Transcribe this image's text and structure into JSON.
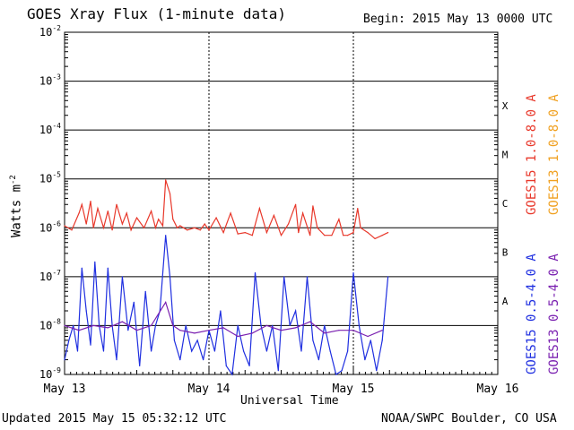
{
  "header": {
    "title": "GOES Xray Flux (1-minute data)",
    "begin": "Begin:  2015 May 13 0000 UTC"
  },
  "footer": {
    "updated": "Updated 2015 May 15 05:32:12 UTC",
    "source": "NOAA/SWPC Boulder, CO USA"
  },
  "legend": [
    {
      "label": "GOES15 1.0-8.0 A",
      "color": "#e8382b"
    },
    {
      "label": "GOES13 1.0-8.0 A",
      "color": "#f0a020"
    },
    {
      "label": "GOES15 0.5-4.0 A",
      "color": "#1f2fe0"
    },
    {
      "label": "GOES13 0.5-4.0 A",
      "color": "#7a20b0"
    }
  ],
  "flare_classes": [
    "X",
    "M",
    "C",
    "B",
    "A"
  ],
  "chart_data": {
    "type": "line",
    "xlabel": "Universal Time",
    "ylabel": "Watts m",
    "ylabel_sup": "-2",
    "y_scale": "log",
    "ylim": [
      1e-09,
      0.01
    ],
    "y_ticks": [
      {
        "base": "10",
        "exp": "-2"
      },
      {
        "base": "10",
        "exp": "-3"
      },
      {
        "base": "10",
        "exp": "-4"
      },
      {
        "base": "10",
        "exp": "-5"
      },
      {
        "base": "10",
        "exp": "-6"
      },
      {
        "base": "10",
        "exp": "-7"
      },
      {
        "base": "10",
        "exp": "-8"
      },
      {
        "base": "10",
        "exp": "-9"
      }
    ],
    "x_ticks": [
      "May 13",
      "May 14",
      "May 15",
      "May 16"
    ],
    "x_day_range": [
      0,
      3
    ],
    "grid": true,
    "series": [
      {
        "name": "GOES15 1.0-8.0 A",
        "color": "#e8382b",
        "x": [
          0,
          0.05,
          0.1,
          0.12,
          0.15,
          0.18,
          0.2,
          0.23,
          0.27,
          0.3,
          0.33,
          0.36,
          0.4,
          0.43,
          0.46,
          0.5,
          0.55,
          0.6,
          0.63,
          0.65,
          0.68,
          0.7,
          0.73,
          0.75,
          0.78,
          0.8,
          0.85,
          0.9,
          0.94,
          0.97,
          1.0,
          1.05,
          1.1,
          1.15,
          1.2,
          1.25,
          1.3,
          1.35,
          1.4,
          1.45,
          1.5,
          1.55,
          1.6,
          1.62,
          1.65,
          1.7,
          1.72,
          1.75,
          1.8,
          1.85,
          1.9,
          1.93,
          1.96,
          2.0,
          2.03,
          2.05,
          2.1,
          2.15,
          2.2,
          2.24
        ],
        "y": [
          1.1e-06,
          9e-07,
          2e-06,
          3e-06,
          1.2e-06,
          3.5e-06,
          1e-06,
          2.5e-06,
          1e-06,
          2.2e-06,
          9e-07,
          3e-06,
          1.2e-06,
          2e-06,
          9e-07,
          1.6e-06,
          1e-06,
          2.2e-06,
          1e-06,
          1.5e-06,
          1.1e-06,
          9.5e-06,
          5e-06,
          1.5e-06,
          1e-06,
          1.1e-06,
          9e-07,
          1e-06,
          9e-07,
          1.2e-06,
          9e-07,
          1.6e-06,
          8e-07,
          2e-06,
          7.5e-07,
          8e-07,
          7e-07,
          2.5e-06,
          8e-07,
          1.8e-06,
          7e-07,
          1.2e-06,
          3e-06,
          8e-07,
          2e-06,
          7e-07,
          2.8e-06,
          1e-06,
          7e-07,
          7e-07,
          1.5e-06,
          7e-07,
          7e-07,
          8e-07,
          2.5e-06,
          1e-06,
          8e-07,
          6e-07,
          7e-07,
          8e-07
        ]
      },
      {
        "name": "GOES13 1.0-8.0 A",
        "color": "#f0a020",
        "x": [],
        "y": []
      },
      {
        "name": "GOES15 0.5-4.0 A",
        "color": "#1f2fe0",
        "x": [
          0,
          0.03,
          0.06,
          0.09,
          0.12,
          0.15,
          0.18,
          0.21,
          0.24,
          0.27,
          0.3,
          0.33,
          0.36,
          0.4,
          0.44,
          0.48,
          0.52,
          0.56,
          0.6,
          0.63,
          0.66,
          0.7,
          0.73,
          0.76,
          0.8,
          0.84,
          0.88,
          0.92,
          0.96,
          1.0,
          1.04,
          1.08,
          1.12,
          1.16,
          1.2,
          1.24,
          1.28,
          1.32,
          1.36,
          1.4,
          1.44,
          1.48,
          1.52,
          1.56,
          1.6,
          1.64,
          1.68,
          1.72,
          1.76,
          1.8,
          1.84,
          1.88,
          1.92,
          1.96,
          2.0,
          2.04,
          2.08,
          2.12,
          2.16,
          2.2,
          2.24
        ],
        "y": [
          2e-09,
          5e-09,
          1e-08,
          3e-09,
          1.5e-07,
          2e-08,
          4e-09,
          2e-07,
          1e-08,
          3e-09,
          1.5e-07,
          1e-08,
          2e-09,
          1e-07,
          8e-09,
          3e-08,
          1.5e-09,
          5e-08,
          3e-09,
          1e-08,
          2e-08,
          7e-07,
          1e-07,
          5e-09,
          2e-09,
          1e-08,
          3e-09,
          5e-09,
          2e-09,
          8e-09,
          3e-09,
          2e-08,
          1.5e-09,
          1e-09,
          1e-08,
          3e-09,
          1.5e-09,
          1.2e-07,
          1e-08,
          3e-09,
          1e-08,
          1.2e-09,
          1e-07,
          1e-08,
          2e-08,
          3e-09,
          1e-07,
          5e-09,
          2e-09,
          1e-08,
          3e-09,
          1e-09,
          1.2e-09,
          3e-09,
          1.2e-07,
          1e-08,
          2e-09,
          5e-09,
          1.2e-09,
          5e-09,
          1e-07
        ]
      },
      {
        "name": "GOES13 0.5-4.0 A",
        "color": "#7a20b0",
        "x": [
          0,
          0.1,
          0.2,
          0.3,
          0.4,
          0.5,
          0.6,
          0.7,
          0.75,
          0.8,
          0.9,
          1.0,
          1.1,
          1.2,
          1.3,
          1.4,
          1.5,
          1.6,
          1.7,
          1.8,
          1.9,
          2.0,
          2.1,
          2.2
        ],
        "y": [
          1e-08,
          8e-09,
          1e-08,
          9e-09,
          1.2e-08,
          8e-09,
          1e-08,
          3e-08,
          1e-08,
          8e-09,
          7e-09,
          8e-09,
          9e-09,
          6e-09,
          7e-09,
          1e-08,
          8e-09,
          9e-09,
          1.2e-08,
          7e-09,
          8e-09,
          8e-09,
          6e-09,
          8e-09
        ]
      }
    ]
  }
}
